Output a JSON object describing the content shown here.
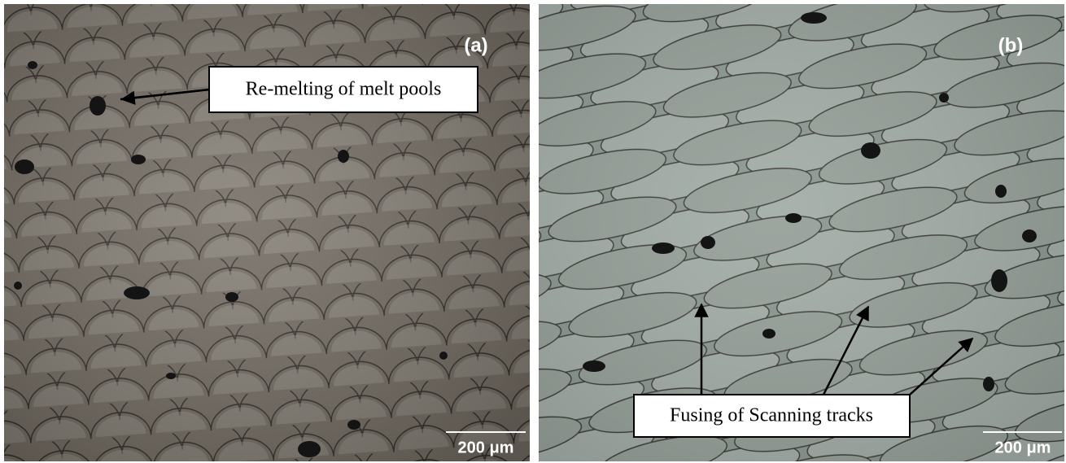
{
  "panels": [
    {
      "label": "(a)",
      "annotation": "Re-melting of melt pools",
      "scale_bar": "200 μm"
    },
    {
      "label": "(b)",
      "annotation": "Fusing of Scanning tracks",
      "scale_bar": "200 μm"
    }
  ]
}
